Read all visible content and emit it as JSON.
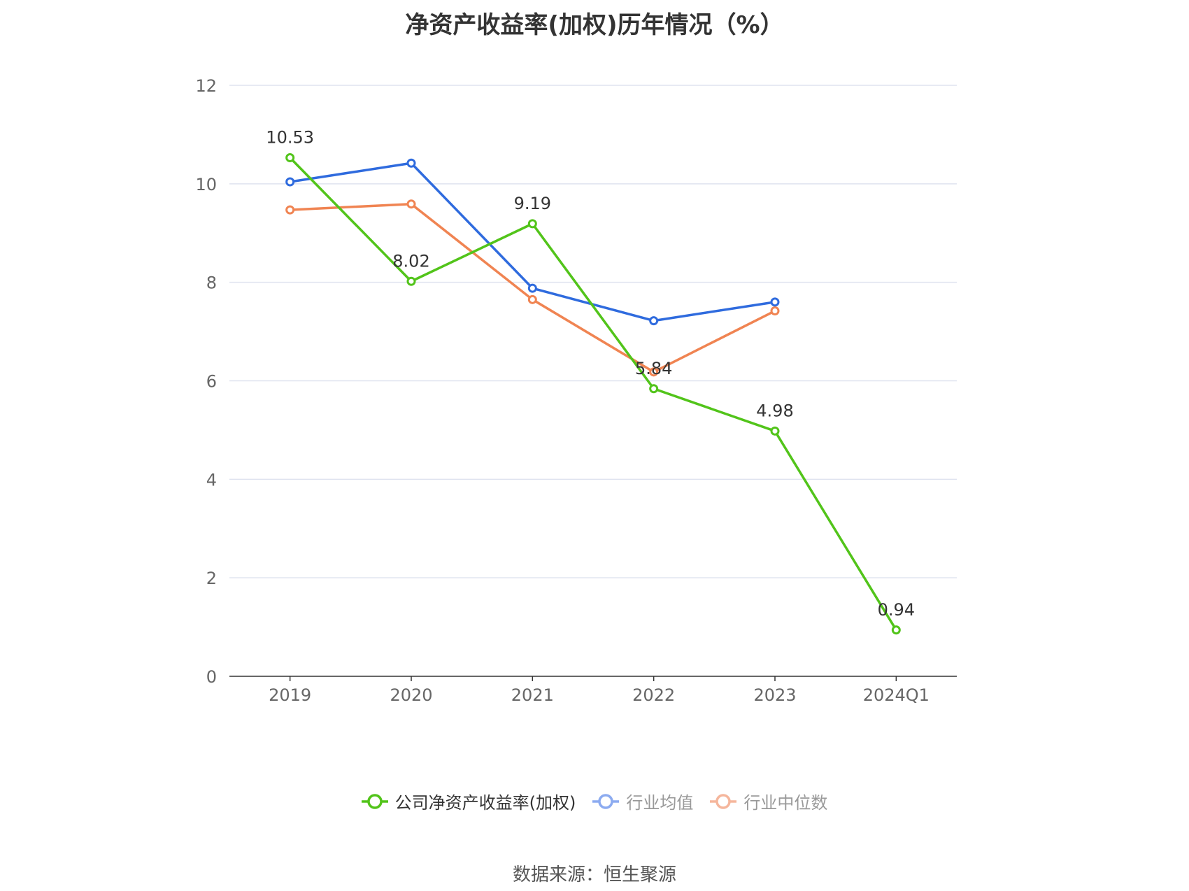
{
  "chart_data": {
    "type": "line",
    "title": "净资产收益率(加权)历年情况（%）",
    "categories": [
      "2019",
      "2020",
      "2021",
      "2022",
      "2023",
      "2024Q1"
    ],
    "ylim": [
      0,
      12
    ],
    "yticks": [
      0,
      2,
      4,
      6,
      8,
      10,
      12
    ],
    "grid": true,
    "legend_position": "bottom-center",
    "series": [
      {
        "name": "公司净资产收益率(加权)",
        "color": "#52c41a",
        "values": [
          10.53,
          8.02,
          9.19,
          5.84,
          4.98,
          0.94
        ],
        "data_labels": [
          "10.53",
          "8.02",
          "9.19",
          "5.84",
          "4.98",
          "0.94"
        ]
      },
      {
        "name": "行业均值",
        "color": "#2f6bde",
        "values": [
          10.04,
          10.42,
          7.88,
          7.22,
          7.6,
          null
        ]
      },
      {
        "name": "行业中位数",
        "color": "#f08452",
        "values": [
          9.47,
          9.59,
          7.65,
          6.18,
          7.42,
          null
        ]
      }
    ],
    "legend": [
      {
        "label": "公司净资产收益率(加权)",
        "color": "#52c41a",
        "text_color": "#333333"
      },
      {
        "label": "行业均值",
        "color": "#8cabf0",
        "text_color": "#999999"
      },
      {
        "label": "行业中位数",
        "color": "#f5b69c",
        "text_color": "#999999"
      }
    ],
    "source": "数据来源：恒生聚源"
  }
}
